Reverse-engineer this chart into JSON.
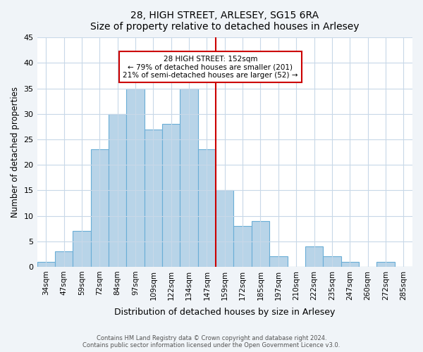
{
  "title": "28, HIGH STREET, ARLESEY, SG15 6RA",
  "subtitle": "Size of property relative to detached houses in Arlesey",
  "xlabel": "Distribution of detached houses by size in Arlesey",
  "ylabel": "Number of detached properties",
  "bar_labels": [
    "34sqm",
    "47sqm",
    "59sqm",
    "72sqm",
    "84sqm",
    "97sqm",
    "109sqm",
    "122sqm",
    "134sqm",
    "147sqm",
    "159sqm",
    "172sqm",
    "185sqm",
    "197sqm",
    "210sqm",
    "222sqm",
    "235sqm",
    "247sqm",
    "260sqm",
    "272sqm",
    "285sqm"
  ],
  "bar_values": [
    1,
    3,
    7,
    23,
    30,
    35,
    27,
    28,
    35,
    23,
    15,
    8,
    9,
    2,
    0,
    4,
    2,
    1,
    0,
    1,
    0
  ],
  "bar_color": "#b8d4e8",
  "bar_edge_color": "#6aaed6",
  "property_line_x": 9.5,
  "property_label": "28 HIGH STREET: 152sqm",
  "annotation_line1": "← 79% of detached houses are smaller (201)",
  "annotation_line2": "21% of semi-detached houses are larger (52) →",
  "annotation_box_color": "#ffffff",
  "annotation_box_edge": "#cc0000",
  "property_line_color": "#cc0000",
  "ylim": [
    0,
    45
  ],
  "yticks": [
    0,
    5,
    10,
    15,
    20,
    25,
    30,
    35,
    40,
    45
  ],
  "footer_line1": "Contains HM Land Registry data © Crown copyright and database right 2024.",
  "footer_line2": "Contains public sector information licensed under the Open Government Licence v3.0.",
  "bg_color": "#f0f4f8",
  "plot_bg_color": "#ffffff",
  "grid_color": "#c8d8e8"
}
